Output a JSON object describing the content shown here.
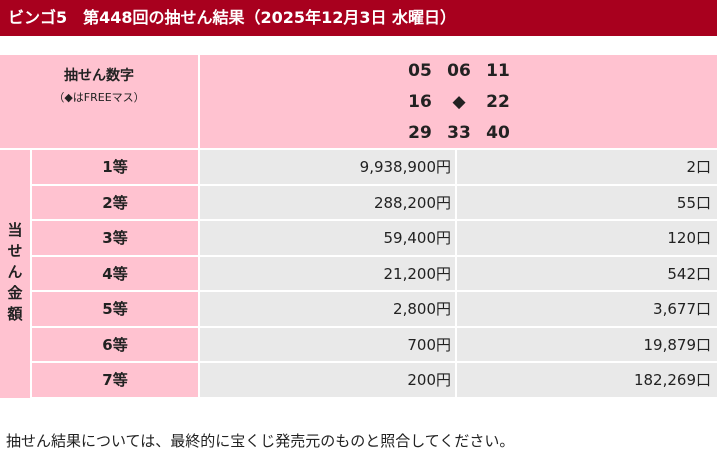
{
  "header": {
    "title": "ビンゴ5　第448回の抽せん結果（2025年12月3日 水曜日）"
  },
  "numbers": {
    "label": "抽せん数字",
    "note": "（◆はFREEマス）",
    "grid": [
      [
        "05",
        "06",
        "11"
      ],
      [
        "16",
        "◆",
        "22"
      ],
      [
        "29",
        "33",
        "40"
      ]
    ]
  },
  "prizes": {
    "label": "当せん金額",
    "rows": [
      [
        "1等",
        "9,938,900円",
        "2口"
      ],
      [
        "2等",
        "288,200円",
        "55口"
      ],
      [
        "3等",
        "59,400円",
        "120口"
      ],
      [
        "4等",
        "21,200円",
        "542口"
      ],
      [
        "5等",
        "2,800円",
        "3,677口"
      ],
      [
        "6等",
        "700円",
        "19,879口"
      ],
      [
        "7等",
        "200円",
        "182,269口"
      ]
    ]
  },
  "footer": {
    "note": "抽せん結果については、最終的に宝くじ発売元のものと照合してください。"
  }
}
